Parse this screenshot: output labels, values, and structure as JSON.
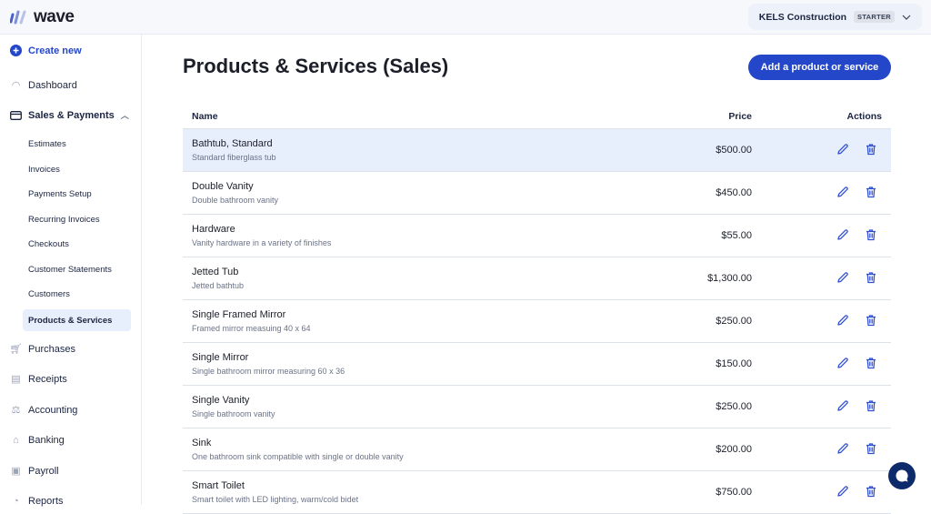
{
  "brand": {
    "name": "wave",
    "accent": "#2446c8"
  },
  "business": {
    "name": "KELS Construction",
    "plan": "STARTER"
  },
  "sidebar": {
    "create": "Create new",
    "items": [
      {
        "label": "Dashboard",
        "icon": "gauge-icon"
      },
      {
        "label": "Sales & Payments",
        "icon": "credit-card-icon"
      },
      {
        "label": "Purchases",
        "icon": "cart-icon"
      },
      {
        "label": "Receipts",
        "icon": "receipt-icon"
      },
      {
        "label": "Accounting",
        "icon": "scale-icon"
      },
      {
        "label": "Banking",
        "icon": "bank-icon"
      },
      {
        "label": "Payroll",
        "icon": "clipboard-icon"
      },
      {
        "label": "Reports",
        "icon": "pie-chart-icon"
      }
    ],
    "sub_items": [
      "Estimates",
      "Invoices",
      "Payments Setup",
      "Recurring Invoices",
      "Checkouts",
      "Customer Statements",
      "Customers",
      "Products & Services"
    ],
    "active_sub": "Products & Services"
  },
  "page": {
    "title": "Products & Services (Sales)",
    "add_button": "Add a product or service"
  },
  "table": {
    "headers": {
      "name": "Name",
      "price": "Price",
      "actions": "Actions"
    },
    "rows": [
      {
        "name": "Bathtub, Standard",
        "description": "Standard fiberglass tub",
        "price": "$500.00"
      },
      {
        "name": "Double Vanity",
        "description": "Double bathroom vanity",
        "price": "$450.00"
      },
      {
        "name": "Hardware",
        "description": "Vanity hardware in a variety of finishes",
        "price": "$55.00"
      },
      {
        "name": "Jetted Tub",
        "description": "Jetted bathtub",
        "price": "$1,300.00"
      },
      {
        "name": "Single Framed Mirror",
        "description": "Framed mirror measuing 40 x 64",
        "price": "$250.00"
      },
      {
        "name": "Single Mirror",
        "description": "Single bathroom mirror measuring 60 x 36",
        "price": "$150.00"
      },
      {
        "name": "Single Vanity",
        "description": "Single bathroom vanity",
        "price": "$250.00"
      },
      {
        "name": "Sink",
        "description": "One bathroom sink compatible with single or double vanity",
        "price": "$200.00"
      },
      {
        "name": "Smart Toilet",
        "description": "Smart toilet with LED lighting, warm/cold bidet",
        "price": "$750.00"
      }
    ]
  }
}
